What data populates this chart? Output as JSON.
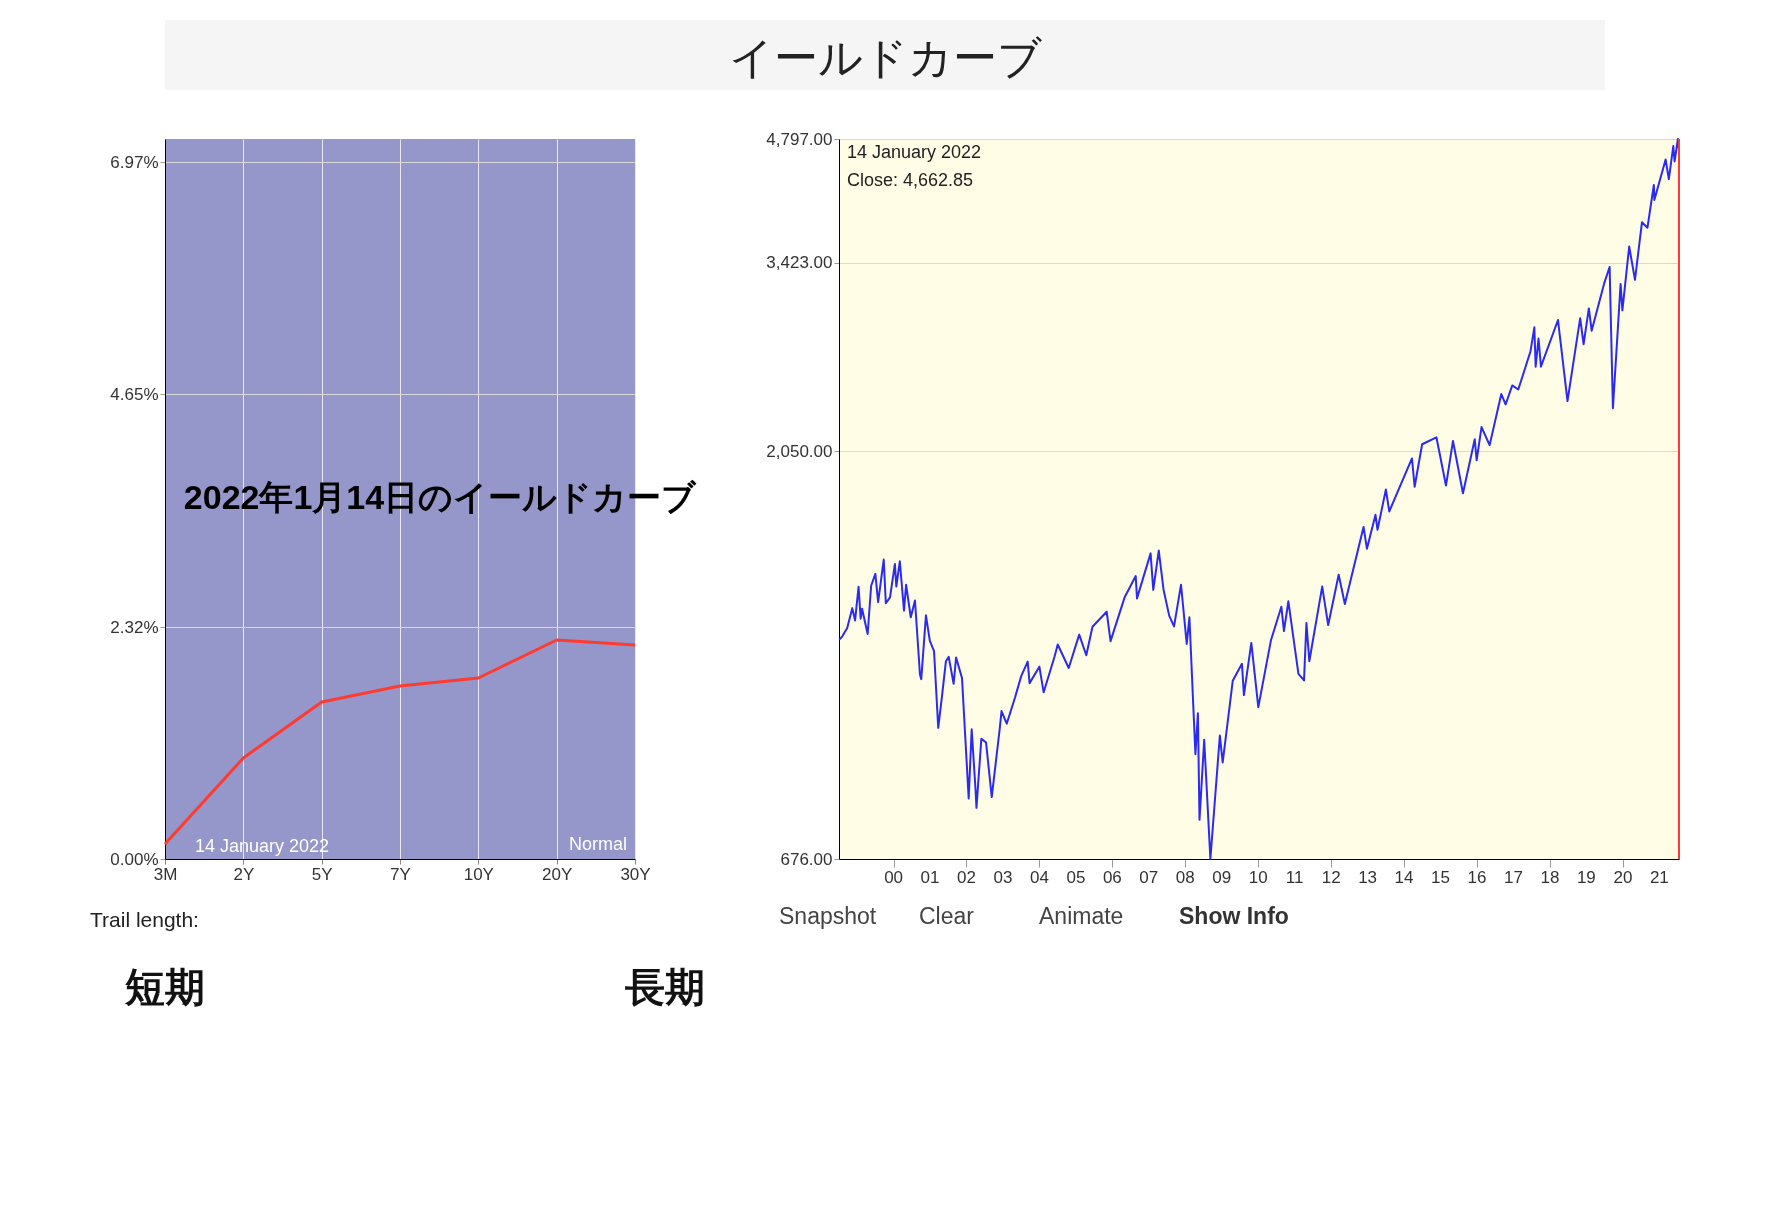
{
  "chart_data": [
    {
      "type": "other",
      "title": "イールドカーブ"
    },
    {
      "type": "line",
      "categories": [
        "3M",
        "2Y",
        "5Y",
        "7Y",
        "10Y",
        "20Y",
        "30Y"
      ],
      "series": [
        {
          "color": "#ff3b30",
          "values": [
            0.15,
            1.01,
            1.57,
            1.73,
            1.81,
            2.19,
            2.14
          ]
        }
      ],
      "ylim": [
        0,
        7.2
      ],
      "yticks": [
        {
          "value": 0,
          "label": "0.00%"
        },
        {
          "value": 2.32,
          "label": "2.32%"
        },
        {
          "value": 4.65,
          "label": "4.65%"
        },
        {
          "value": 6.97,
          "label": "6.97%"
        }
      ],
      "grid": true,
      "legend": false,
      "marker": "none",
      "line_style": "solid",
      "annotations": [
        "14  January 2022",
        "Normal",
        "2022年1月14日のイールドカーブ",
        "Trail length:",
        "短期",
        "長期"
      ]
    },
    {
      "type": "line",
      "x": [
        "1999-01-04",
        "1999-02-05",
        "1999-03-24",
        "1999-05-14",
        "1999-06-11",
        "1999-07-16",
        "1999-08-06",
        "1999-08-20",
        "1999-10-15",
        "1999-11-19",
        "1999-12-31",
        "2000-01-28",
        "2000-03-24",
        "2000-04-14",
        "2000-05-26",
        "2000-07-14",
        "2000-07-28",
        "2000-09-01",
        "2000-10-13",
        "2000-11-03",
        "2000-12-20",
        "2001-01-31",
        "2001-03-22",
        "2001-04-04",
        "2001-05-21",
        "2001-06-29",
        "2001-08-10",
        "2001-09-21",
        "2001-10-31",
        "2001-12-07",
        "2002-01-04",
        "2002-02-22",
        "2002-03-19",
        "2002-05-17",
        "2002-07-23",
        "2002-08-22",
        "2002-09-30",
        "2002-10-09",
        "2002-11-27",
        "2003-01-13",
        "2003-03-11",
        "2003-05-30",
        "2003-06-17",
        "2003-08-08",
        "2003-10-31",
        "2003-12-31",
        "2004-03-05",
        "2004-03-24",
        "2004-06-30",
        "2004-08-12",
        "2004-11-30",
        "2004-12-31",
        "2005-04-20",
        "2005-08-03",
        "2005-10-13",
        "2005-12-14",
        "2006-05-05",
        "2006-06-13",
        "2006-10-31",
        "2007-02-20",
        "2007-03-05",
        "2007-07-19",
        "2007-08-15",
        "2007-10-09",
        "2007-11-26",
        "2008-01-22",
        "2008-03-10",
        "2008-05-19",
        "2008-07-15",
        "2008-08-11",
        "2008-10-10",
        "2008-11-04",
        "2008-11-20",
        "2009-01-06",
        "2009-03-09",
        "2009-06-12",
        "2009-07-10",
        "2009-10-19",
        "2010-01-19",
        "2010-02-08",
        "2010-04-23",
        "2010-07-02",
        "2010-11-05",
        "2011-02-18",
        "2011-03-16",
        "2011-04-29",
        "2011-08-08",
        "2011-10-03",
        "2011-10-27",
        "2011-11-25",
        "2012-04-02",
        "2012-06-01",
        "2012-09-14",
        "2012-11-15",
        "2013-05-21",
        "2013-06-24",
        "2013-09-18",
        "2013-10-08",
        "2013-12-31",
        "2014-02-03",
        "2014-09-18",
        "2014-10-15",
        "2014-12-29",
        "2015-05-21",
        "2015-08-25",
        "2015-11-03",
        "2016-02-11",
        "2016-06-08",
        "2016-06-27",
        "2016-08-15",
        "2016-11-04",
        "2017-03-01",
        "2017-04-13",
        "2017-06-19",
        "2017-08-18",
        "2017-12-18",
        "2018-01-26",
        "2018-02-08",
        "2018-03-09",
        "2018-04-02",
        "2018-09-20",
        "2018-12-24",
        "2019-04-30",
        "2019-06-03",
        "2019-07-26",
        "2019-08-23",
        "2019-12-27",
        "2020-02-19",
        "2020-03-23",
        "2020-06-08",
        "2020-06-26",
        "2020-09-02",
        "2020-10-30",
        "2021-01-08",
        "2021-03-04",
        "2021-05-07",
        "2021-05-12",
        "2021-09-02",
        "2021-10-04",
        "2021-11-18",
        "2021-12-01",
        "2022-01-03",
        "2022-01-14"
      ],
      "series": [
        {
          "color": "#2a2af5",
          "values": [
            1228,
            1240,
            1268,
            1338,
            1294,
            1418,
            1300,
            1336,
            1247,
            1422,
            1469,
            1360,
            1527,
            1356,
            1378,
            1509,
            1419,
            1520,
            1329,
            1426,
            1305,
            1366,
            1117,
            1103,
            1312,
            1224,
            1190,
            966,
            1059,
            1158,
            1172,
            1089,
            1170,
            1106,
            797,
            962,
            815,
            777,
            938,
            928,
            800,
            964,
            1011,
            977,
            1050,
            1112,
            1157,
            1091,
            1141,
            1064,
            1174,
            1212,
            1137,
            1245,
            1177,
            1272,
            1325,
            1223,
            1377,
            1460,
            1374,
            1553,
            1406,
            1565,
            1407,
            1310,
            1273,
            1426,
            1214,
            1305,
            899,
            1005,
            752,
            935,
            676,
            946,
            879,
            1098,
            1150,
            1056,
            1217,
            1022,
            1225,
            1343,
            1257,
            1363,
            1119,
            1099,
            1285,
            1158,
            1419,
            1278,
            1465,
            1353,
            1669,
            1573,
            1725,
            1656,
            1848,
            1741,
            2011,
            1862,
            2090,
            2130,
            1868,
            2109,
            1829,
            2119,
            2001,
            2190,
            2085,
            2396,
            2329,
            2453,
            2426,
            2690,
            2873,
            2581,
            2787,
            2582,
            2931,
            2351,
            2946,
            2744,
            3025,
            2847,
            3240,
            3386,
            2305,
            3232,
            3009,
            3580,
            3270,
            3824,
            3768,
            4233,
            4063,
            4537,
            4300,
            4705,
            4513,
            4797,
            4662.85
          ]
        }
      ],
      "xlim": [
        "1999-01-01",
        "2022-01-14"
      ],
      "xticks": [
        {
          "value": "2000-07-01",
          "label": "00"
        },
        {
          "value": "2001-07-01",
          "label": "01"
        },
        {
          "value": "2002-07-01",
          "label": "02"
        },
        {
          "value": "2003-07-01",
          "label": "03"
        },
        {
          "value": "2004-07-01",
          "label": "04"
        },
        {
          "value": "2005-07-01",
          "label": "05"
        },
        {
          "value": "2006-07-01",
          "label": "06"
        },
        {
          "value": "2007-07-01",
          "label": "07"
        },
        {
          "value": "2008-07-01",
          "label": "08"
        },
        {
          "value": "2009-07-01",
          "label": "09"
        },
        {
          "value": "2010-07-01",
          "label": "10"
        },
        {
          "value": "2011-07-01",
          "label": "11"
        },
        {
          "value": "2012-07-01",
          "label": "12"
        },
        {
          "value": "2013-07-01",
          "label": "13"
        },
        {
          "value": "2014-07-01",
          "label": "14"
        },
        {
          "value": "2015-07-01",
          "label": "15"
        },
        {
          "value": "2016-07-01",
          "label": "16"
        },
        {
          "value": "2017-07-01",
          "label": "17"
        },
        {
          "value": "2018-07-01",
          "label": "18"
        },
        {
          "value": "2019-07-01",
          "label": "19"
        },
        {
          "value": "2020-07-01",
          "label": "20"
        },
        {
          "value": "2021-07-01",
          "label": "21"
        }
      ],
      "ylim": [
        676,
        4797
      ],
      "yticks": [
        {
          "value": 676,
          "label": "676.00"
        },
        {
          "value": 2050,
          "label": "2,050.00"
        },
        {
          "value": 3423,
          "label": "3,423.00"
        },
        {
          "value": 4797,
          "label": "4,797.00"
        }
      ],
      "log": "y",
      "grid": "y",
      "legend": false,
      "marker": "none",
      "line_style": "solid",
      "ref_lines": [
        {
          "axis": "x",
          "value": "2022-01-14",
          "color": "#ff3b30"
        }
      ],
      "annotations": [
        "14  January 2022",
        "Close: 4,662.85",
        "Snapshot",
        "Clear",
        "Animate",
        "Show Info"
      ]
    }
  ]
}
